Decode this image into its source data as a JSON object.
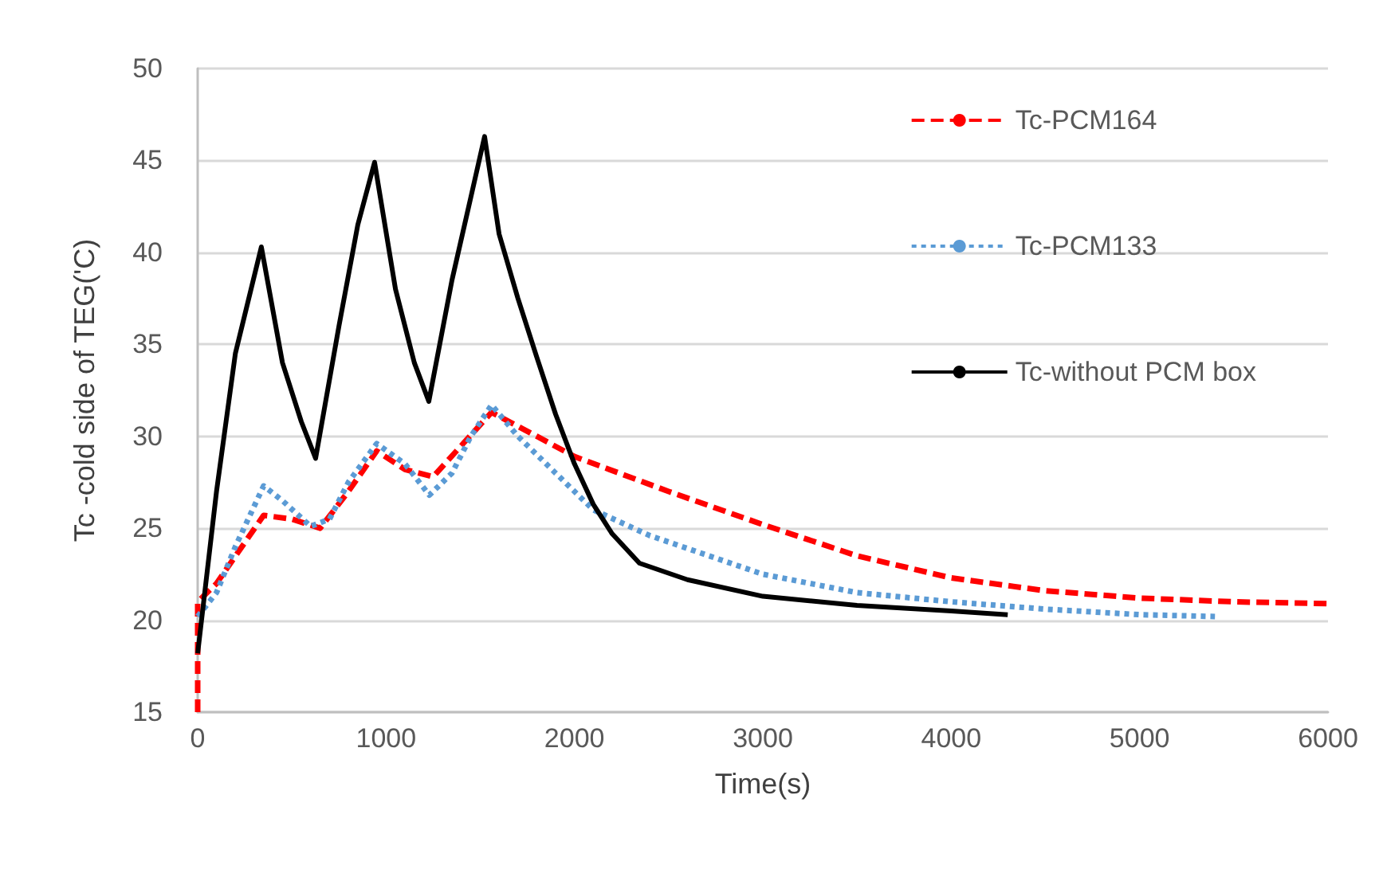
{
  "chart_data": {
    "type": "line",
    "xlabel": "Time(s)",
    "ylabel": "Tc -cold side of TEG('C)",
    "xlim": [
      0,
      6000
    ],
    "xticks": [
      0,
      1000,
      2000,
      3000,
      4000,
      5000,
      6000
    ],
    "ylim": [
      15,
      50
    ],
    "yticks": [
      15,
      20,
      25,
      30,
      35,
      40,
      45,
      50
    ],
    "grid": "y",
    "legend": "top right",
    "marker": "none",
    "series": [
      {
        "name": "Tc-PCM164",
        "color": "#ff0000",
        "line_style": "dashed",
        "x": [
          0,
          0,
          100,
          350,
          500,
          650,
          800,
          950,
          1100,
          1250,
          1400,
          1560,
          1800,
          2000,
          2500,
          3000,
          3500,
          4000,
          4500,
          5000,
          5500,
          6000
        ],
        "values": [
          15,
          21,
          22,
          25.7,
          25.5,
          25,
          27,
          29.2,
          28.2,
          27.8,
          29.5,
          31.3,
          30,
          28.9,
          27,
          25.2,
          23.5,
          22.3,
          21.6,
          21.2,
          21,
          20.9
        ]
      },
      {
        "name": "Tc-PCM133",
        "color": "#5b9bd5",
        "line_style": "dotted",
        "x": [
          0,
          100,
          200,
          350,
          450,
          600,
          700,
          800,
          950,
          1100,
          1230,
          1350,
          1450,
          1560,
          1700,
          1900,
          2100,
          2400,
          3000,
          3500,
          4000,
          4500,
          5000,
          5400
        ],
        "values": [
          20.2,
          21.5,
          24,
          27.3,
          26.5,
          25.1,
          25.5,
          27.5,
          29.6,
          28.5,
          26.8,
          28,
          30,
          31.7,
          30,
          28,
          26,
          24.6,
          22.5,
          21.5,
          21,
          20.6,
          20.3,
          20.2
        ]
      },
      {
        "name": "Tc-without PCM box",
        "color": "#000000",
        "line_style": "solid",
        "x": [
          0,
          100,
          200,
          338,
          450,
          550,
          626,
          750,
          850,
          939,
          1050,
          1150,
          1227,
          1350,
          1450,
          1523,
          1600,
          1700,
          1800,
          1900,
          2000,
          2100,
          2200,
          2345,
          2600,
          3000,
          3500,
          4000,
          4300
        ],
        "values": [
          18.2,
          27,
          34.5,
          40.3,
          34,
          30.8,
          28.8,
          36,
          41.5,
          44.9,
          38,
          34,
          31.9,
          38.5,
          43,
          46.3,
          41,
          37.5,
          34.3,
          31.2,
          28.5,
          26.3,
          24.7,
          23.1,
          22.2,
          21.3,
          20.8,
          20.5,
          20.3
        ]
      }
    ]
  }
}
